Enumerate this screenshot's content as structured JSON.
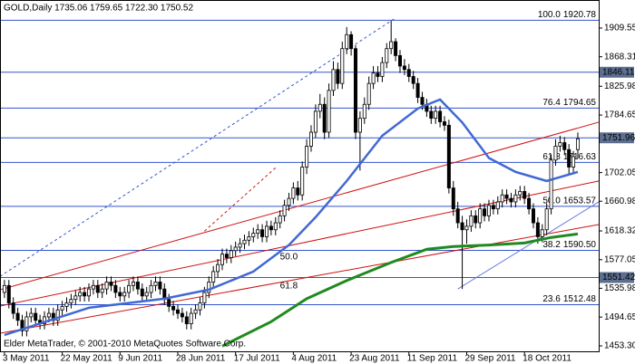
{
  "chart_data": {
    "type": "candlestick",
    "title": "GOLD,Daily  1735.06 1759.65 1722.30 1750.52",
    "footer": "Elder MetaTrader, © 2001-2010 MetaQuotes Software Corp.",
    "xlim": [
      -1,
      133.7
    ],
    "xticks": [
      {
        "value": 0,
        "label": "3 May 2011"
      },
      {
        "value": 13,
        "label": "22 May 2011"
      },
      {
        "value": 26,
        "label": "9 Jun 2011"
      },
      {
        "value": 39,
        "label": "28 Jun 2011"
      },
      {
        "value": 52,
        "label": "17 Jul 2011"
      },
      {
        "value": 65,
        "label": "4 Aug 2011"
      },
      {
        "value": 78,
        "label": "23 Aug 2011"
      },
      {
        "value": 91,
        "label": "11 Sep 2011"
      },
      {
        "value": 104,
        "label": "29 Sep 2011"
      },
      {
        "value": 117,
        "label": "18 Oct 2011"
      }
    ],
    "ylim": [
      1445.5,
      1947.2
    ],
    "yticks": [
      1909.55,
      1868.31,
      1825.98,
      1784.65,
      1702.05,
      1660.98,
      1618.32,
      1577.05,
      1535.98,
      1494.65,
      {
        "value": 1453.3,
        "label": "1453.30"
      }
    ],
    "bull_color": "#ffffff",
    "bear_color": "#000000",
    "open": [
      1530,
      1540,
      1515,
      1500,
      1490,
      1475,
      1495,
      1500,
      1490,
      1485,
      1495,
      1500,
      1490,
      1505,
      1510,
      1515,
      1520,
      1525,
      1530,
      1525,
      1535,
      1540,
      1530,
      1535,
      1545,
      1540,
      1530,
      1525,
      1530,
      1540,
      1545,
      1535,
      1525,
      1530,
      1540,
      1545,
      1535,
      1520,
      1510,
      1505,
      1500,
      1495,
      1485,
      1500,
      1505,
      1515,
      1530,
      1545,
      1560,
      1570,
      1585,
      1580,
      1590,
      1595,
      1600,
      1605,
      1610,
      1615,
      1620,
      1610,
      1625,
      1620,
      1630,
      1640,
      1655,
      1665,
      1680,
      1670,
      1710,
      1740,
      1760,
      1790,
      1800,
      1760,
      1820,
      1850,
      1830,
      1880,
      1900,
      1880,
      1760,
      1780,
      1800,
      1830,
      1845,
      1840,
      1860,
      1880,
      1890,
      1870,
      1855,
      1850,
      1840,
      1830,
      1810,
      1800,
      1790,
      1780,
      1790,
      1775,
      1770,
      1680,
      1650,
      1630,
      1620,
      1625,
      1640,
      1630,
      1650,
      1640,
      1655,
      1650,
      1660,
      1670,
      1665,
      1660,
      1670,
      1675,
      1665,
      1650,
      1630,
      1610,
      1620,
      1650,
      1720,
      1740,
      1745,
      1735,
      1710,
      1735.06
    ],
    "high": [
      1548,
      1548,
      1523,
      1508,
      1498,
      1503,
      1508,
      1508,
      1498,
      1503,
      1508,
      1508,
      1513,
      1518,
      1523,
      1528,
      1533,
      1538,
      1538,
      1543,
      1548,
      1548,
      1543,
      1553,
      1553,
      1548,
      1538,
      1538,
      1548,
      1553,
      1553,
      1543,
      1538,
      1548,
      1553,
      1553,
      1543,
      1528,
      1518,
      1513,
      1508,
      1503,
      1508,
      1513,
      1523,
      1538,
      1553,
      1568,
      1578,
      1593,
      1593,
      1598,
      1603,
      1608,
      1613,
      1618,
      1623,
      1628,
      1628,
      1633,
      1633,
      1638,
      1648,
      1663,
      1673,
      1688,
      1690,
      1718,
      1750,
      1770,
      1800,
      1815,
      1810,
      1830,
      1862,
      1860,
      1890,
      1911,
      1905,
      1885,
      1790,
      1810,
      1840,
      1855,
      1855,
      1868,
      1888,
      1920,
      1895,
      1878,
      1865,
      1858,
      1848,
      1838,
      1818,
      1808,
      1798,
      1798,
      1798,
      1783,
      1778,
      1690,
      1660,
      1640,
      1635,
      1648,
      1648,
      1658,
      1658,
      1663,
      1663,
      1668,
      1678,
      1678,
      1673,
      1678,
      1683,
      1683,
      1673,
      1658,
      1638,
      1628,
      1658,
      1728,
      1750,
      1755,
      1753,
      1743,
      1733,
      1759.65
    ],
    "low": [
      1522,
      1507,
      1492,
      1482,
      1467,
      1467,
      1487,
      1482,
      1477,
      1477,
      1487,
      1482,
      1482,
      1497,
      1502,
      1507,
      1512,
      1517,
      1517,
      1517,
      1527,
      1522,
      1522,
      1527,
      1532,
      1522,
      1517,
      1517,
      1522,
      1532,
      1527,
      1517,
      1517,
      1522,
      1532,
      1527,
      1512,
      1502,
      1497,
      1492,
      1487,
      1477,
      1477,
      1492,
      1497,
      1507,
      1522,
      1537,
      1552,
      1562,
      1572,
      1572,
      1582,
      1587,
      1592,
      1597,
      1602,
      1607,
      1602,
      1602,
      1612,
      1612,
      1622,
      1632,
      1647,
      1657,
      1662,
      1662,
      1700,
      1732,
      1752,
      1780,
      1750,
      1752,
      1812,
      1822,
      1822,
      1872,
      1870,
      1750,
      1705,
      1772,
      1792,
      1822,
      1832,
      1832,
      1852,
      1872,
      1862,
      1845,
      1842,
      1832,
      1822,
      1802,
      1792,
      1782,
      1772,
      1772,
      1767,
      1762,
      1672,
      1640,
      1622,
      1535,
      1600,
      1617,
      1622,
      1622,
      1632,
      1632,
      1642,
      1642,
      1652,
      1657,
      1652,
      1652,
      1662,
      1657,
      1642,
      1622,
      1600,
      1602,
      1612,
      1642,
      1712,
      1732,
      1727,
      1700,
      1702,
      1722.3
    ],
    "close": [
      1540,
      1515,
      1500,
      1490,
      1475,
      1495,
      1500,
      1490,
      1485,
      1495,
      1500,
      1490,
      1505,
      1510,
      1515,
      1520,
      1525,
      1530,
      1525,
      1535,
      1540,
      1530,
      1535,
      1545,
      1540,
      1530,
      1525,
      1530,
      1540,
      1545,
      1535,
      1525,
      1530,
      1540,
      1545,
      1535,
      1520,
      1510,
      1505,
      1500,
      1495,
      1485,
      1500,
      1505,
      1515,
      1530,
      1545,
      1560,
      1570,
      1585,
      1580,
      1590,
      1595,
      1600,
      1605,
      1610,
      1615,
      1620,
      1610,
      1625,
      1620,
      1630,
      1640,
      1655,
      1665,
      1680,
      1670,
      1710,
      1740,
      1760,
      1790,
      1800,
      1760,
      1820,
      1850,
      1830,
      1880,
      1900,
      1880,
      1760,
      1780,
      1800,
      1830,
      1845,
      1840,
      1860,
      1880,
      1890,
      1870,
      1855,
      1850,
      1840,
      1830,
      1810,
      1800,
      1790,
      1780,
      1790,
      1775,
      1770,
      1680,
      1650,
      1630,
      1620,
      1625,
      1640,
      1630,
      1650,
      1640,
      1655,
      1650,
      1660,
      1670,
      1665,
      1660,
      1670,
      1675,
      1665,
      1650,
      1630,
      1610,
      1620,
      1650,
      1720,
      1740,
      1745,
      1735,
      1710,
      1725,
      1750.52
    ],
    "ma": [
      {
        "color": "#4169d4",
        "width": 2.5,
        "x": [
          0,
          19,
          36,
          46,
          56,
          64,
          70,
          77,
          85,
          93,
          98,
          103,
          109,
          115,
          122,
          129
        ],
        "values": [
          1469,
          1508,
          1521,
          1534,
          1560,
          1598,
          1638,
          1690,
          1755,
          1794,
          1807,
          1774,
          1723,
          1703,
          1690,
          1703
        ]
      },
      {
        "color": "#1f8a1f",
        "width": 3,
        "x": [
          49,
          60,
          68,
          77,
          87,
          95,
          101,
          109,
          117,
          123,
          129
        ],
        "values": [
          1453,
          1488,
          1521,
          1547,
          1573,
          1592,
          1596,
          1598,
          1601,
          1609,
          1614
        ]
      }
    ],
    "trendlines": [
      {
        "color": "#d01010",
        "dash": false,
        "x": [
          -1,
          133.7
        ],
        "values": [
          1533.9,
          1774.4
        ]
      },
      {
        "color": "#d01010",
        "dash": false,
        "x": [
          -1,
          133.7
        ],
        "values": [
          1510.5,
          1690
        ]
      },
      {
        "color": "#d01010",
        "dash": false,
        "x": [
          -1,
          133.7
        ],
        "values": [
          1471.5,
          1627.5
        ]
      },
      {
        "color": "#d01010",
        "dash": true,
        "x": [
          45,
          61
        ],
        "values": [
          1618,
          1709
        ]
      },
      {
        "color": "#3355cc",
        "dash": true,
        "x": [
          -1,
          88
        ],
        "values": [
          1553,
          1924
        ]
      },
      {
        "color": "#6677dd",
        "dash": false,
        "x": [
          102,
          133.7
        ],
        "values": [
          1535,
          1660
        ]
      }
    ],
    "hlines": {
      "color": "#3355cc",
      "box_color": "#5c6f90",
      "values": [
        1846.11,
        1751.96,
        1551.42
      ]
    },
    "fib": {
      "color": "#3355cc",
      "levels": [
        "100.0",
        "76.4",
        "61.8",
        "50.0",
        "38.2",
        "23.6"
      ],
      "values": [
        1920.78,
        1794.65,
        1716.63,
        1653.57,
        1590.5,
        1512.48
      ],
      "value_labels": [
        "1920.78",
        "1794.65",
        "1716.63",
        "1653.57",
        "1590.50",
        "1512.48"
      ]
    },
    "fan_labels": {
      "color": "#d01010",
      "labels": [
        "50.0",
        "61.8"
      ],
      "x": [
        62,
        62
      ],
      "values": [
        1580.7,
        1539.1
      ]
    }
  }
}
